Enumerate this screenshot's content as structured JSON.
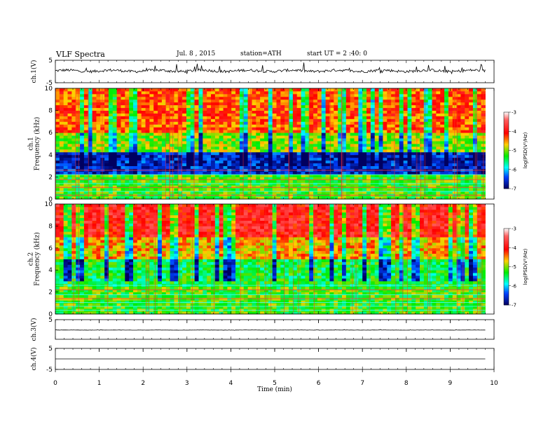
{
  "header": {
    "title": "VLF Spectra",
    "date": "Jul. 8 , 2015",
    "station": "station=ATH",
    "start": "start UT = 2 :40: 0"
  },
  "colorbar": {
    "label": "log(PSD(V²/Hz)",
    "ticks": [
      "-3",
      "-4",
      "-5",
      "-6",
      "-7"
    ],
    "colors": [
      "#ffffff",
      "#ff6060",
      "#ff0000",
      "#ffd000",
      "#00ee00",
      "#00ffff",
      "#0040ff",
      "#000060"
    ]
  },
  "chart_data": {
    "type": "heatmap",
    "xlabel": "Time (min)",
    "xlim": [
      0,
      10
    ],
    "x_ticks": [
      "0",
      "1",
      "2",
      "3",
      "4",
      "5",
      "6",
      "7",
      "8",
      "9",
      "10"
    ],
    "data_end_min": 9.8,
    "panels": [
      {
        "label": "ch.1(V)",
        "kind": "waveform",
        "ylim": [
          -5,
          5
        ],
        "y_ticks": [
          "5",
          "-5"
        ],
        "baseline": 0.3,
        "amplitude": 1.2
      },
      {
        "label": "ch.1\nFrequency (kHz)",
        "kind": "spectrogram",
        "ylim": [
          0,
          10
        ],
        "y_ticks": [
          "0",
          "2",
          "4",
          "6",
          "8",
          "10"
        ],
        "bands_kHz": [
          {
            "from": 0,
            "to": 2.3,
            "level": -5.2
          },
          {
            "from": 2.3,
            "to": 4.2,
            "level": -6.6
          },
          {
            "from": 4.2,
            "to": 6.0,
            "level": -5.0
          },
          {
            "from": 6.0,
            "to": 10,
            "level": -4.3
          }
        ]
      },
      {
        "label": "ch.2\nFrequency (kHz)",
        "kind": "spectrogram",
        "ylim": [
          0,
          10
        ],
        "y_ticks": [
          "0",
          "2",
          "4",
          "6",
          "8",
          "10"
        ],
        "bands_kHz": [
          {
            "from": 0,
            "to": 2.5,
            "level": -5.2
          },
          {
            "from": 2.5,
            "to": 5.0,
            "level": -5.4
          },
          {
            "from": 5.0,
            "to": 7.0,
            "level": -4.6
          },
          {
            "from": 7.0,
            "to": 10,
            "level": -3.9
          }
        ]
      },
      {
        "label": "ch.3(V)",
        "kind": "waveform",
        "ylim": [
          -5,
          5
        ],
        "y_ticks": [
          "5"
        ],
        "baseline": -0.3,
        "amplitude": 0.1
      },
      {
        "label": "ch.4(V)",
        "kind": "waveform",
        "ylim": [
          -5,
          5
        ],
        "y_ticks": [
          "5",
          "-5"
        ],
        "baseline": 0.0,
        "amplitude": 0.0
      }
    ]
  }
}
